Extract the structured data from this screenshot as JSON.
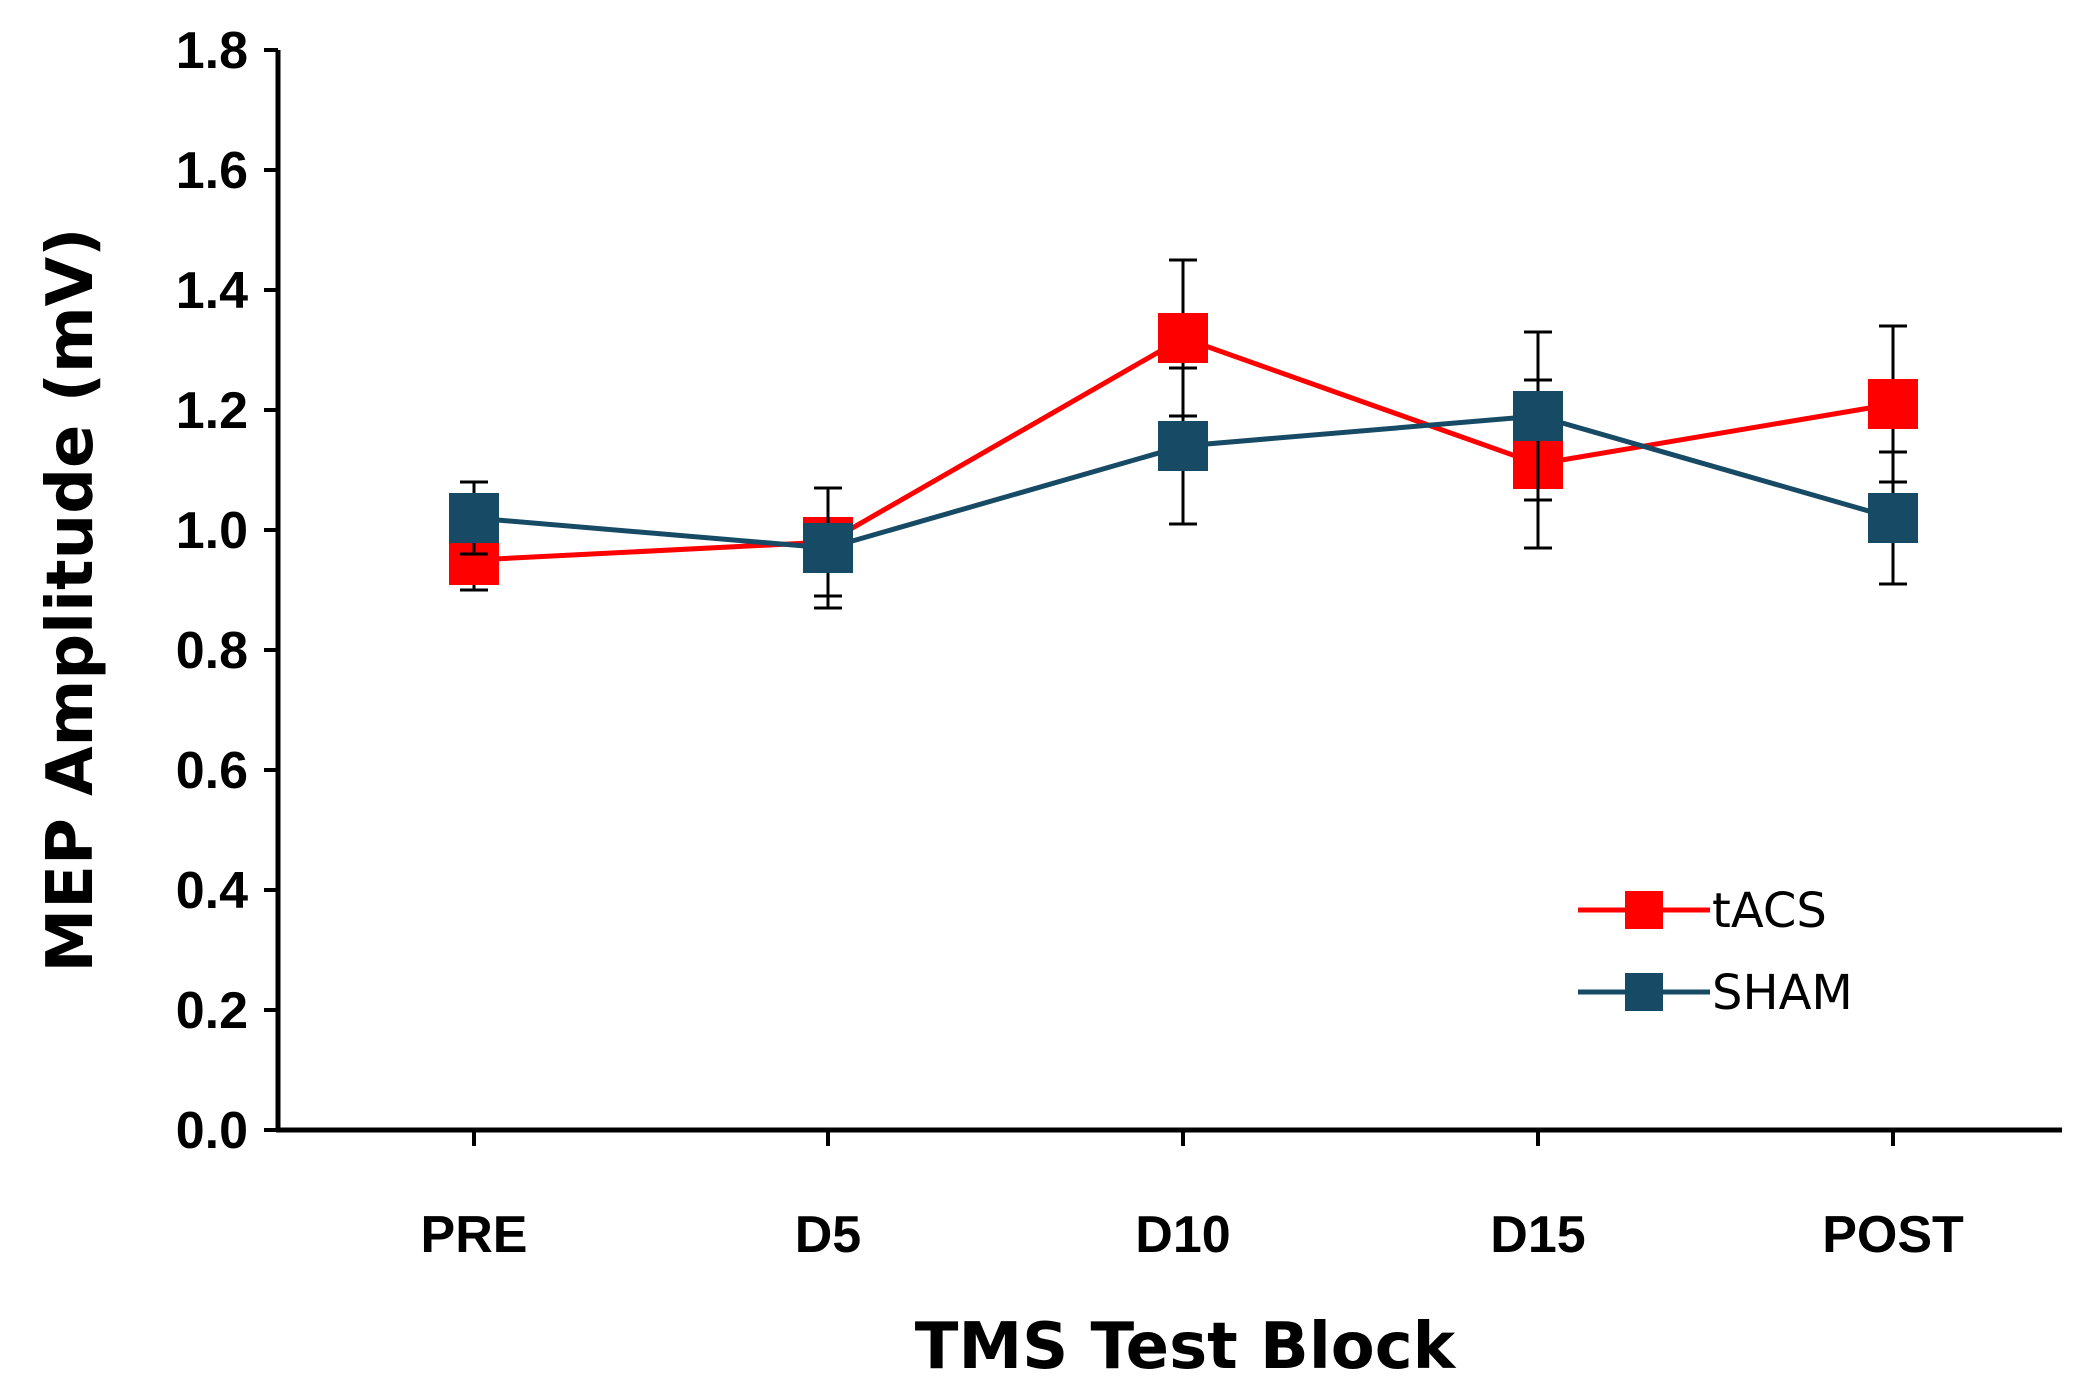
{
  "chart_data": {
    "type": "line",
    "title": "",
    "xlabel": "TMS Test Block",
    "ylabel": "MEP Amplitude (mV)",
    "categories": [
      "PRE",
      "D5",
      "D10",
      "D15",
      "POST"
    ],
    "ylim": [
      0.0,
      1.8
    ],
    "yticks": [
      0.0,
      0.2,
      0.4,
      0.6,
      0.8,
      1.0,
      1.2,
      1.4,
      1.6,
      1.8
    ],
    "ytick_labels": [
      "0.0",
      "0.2",
      "0.4",
      "0.6",
      "0.8",
      "1.0",
      "1.2",
      "1.4",
      "1.6",
      "1.8"
    ],
    "grid": false,
    "legend_position": "bottom-right",
    "series": [
      {
        "name": "tACS",
        "color": "#ff0000",
        "marker": "square",
        "values": [
          0.95,
          0.98,
          1.32,
          1.11,
          1.21
        ],
        "error": [
          0.05,
          0.09,
          0.13,
          0.14,
          0.13
        ]
      },
      {
        "name": "SHAM",
        "color": "#174a65",
        "marker": "square",
        "values": [
          1.02,
          0.97,
          1.14,
          1.19,
          1.02
        ],
        "error": [
          0.06,
          0.1,
          0.13,
          0.14,
          0.11
        ]
      }
    ]
  }
}
